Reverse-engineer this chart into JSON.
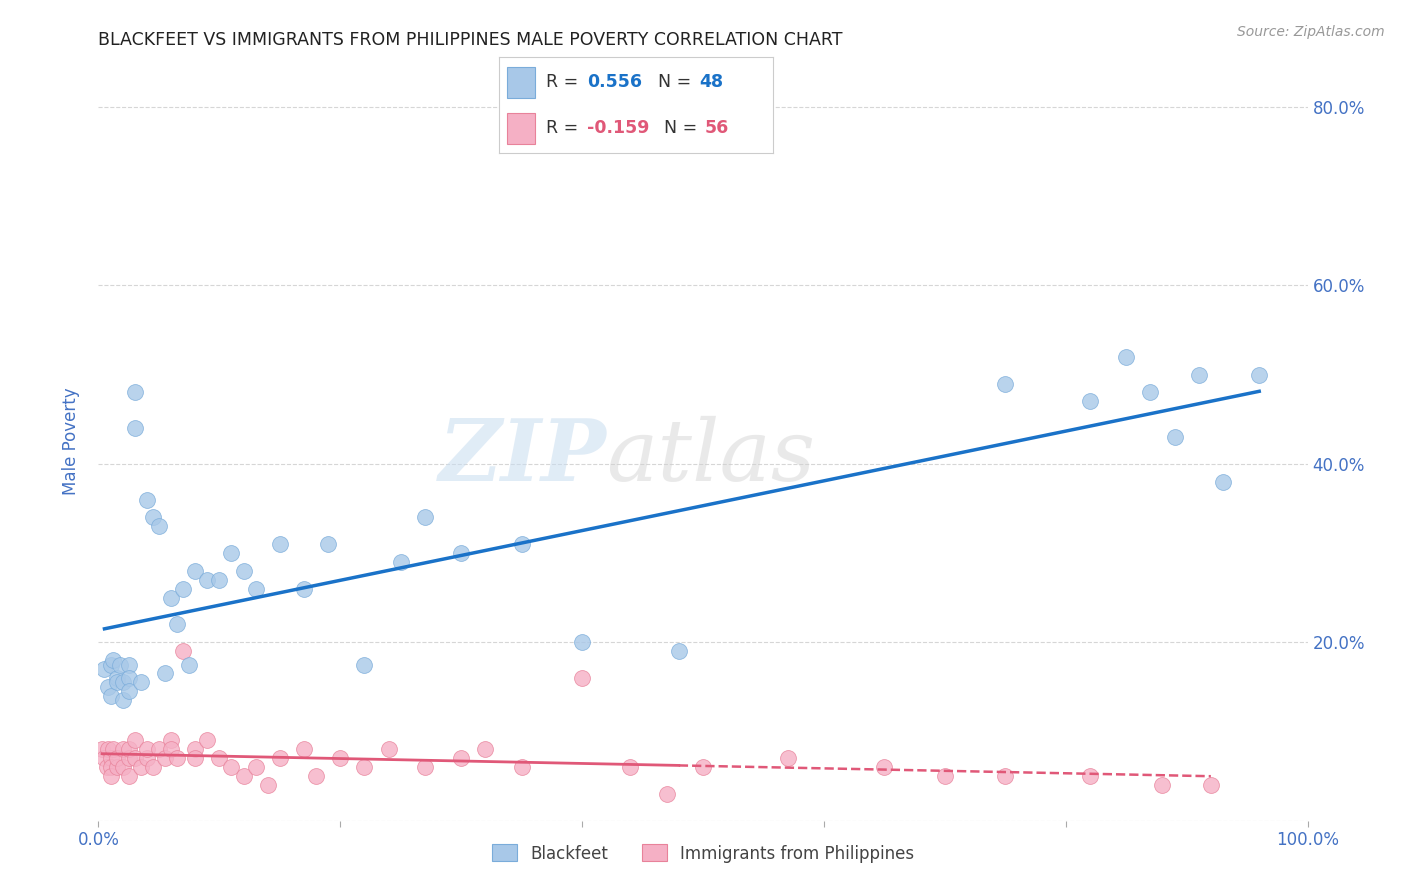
{
  "title": "BLACKFEET VS IMMIGRANTS FROM PHILIPPINES MALE POVERTY CORRELATION CHART",
  "source": "Source: ZipAtlas.com",
  "ylabel": "Male Poverty",
  "xlim": [
    0,
    1.0
  ],
  "ylim": [
    0,
    0.85
  ],
  "blue_R": 0.556,
  "blue_N": 48,
  "pink_R": -0.159,
  "pink_N": 56,
  "blue_scatter_color": "#a8c8e8",
  "pink_scatter_color": "#f5b0c5",
  "blue_edge_color": "#7aacda",
  "pink_edge_color": "#e8829a",
  "blue_line_color": "#1a72c8",
  "pink_line_color": "#e05878",
  "legend_blue_label": "Blackfeet",
  "legend_pink_label": "Immigrants from Philippines",
  "background_color": "#ffffff",
  "grid_color": "#cccccc",
  "title_color": "#222222",
  "axis_label_color": "#4472c4",
  "tick_color": "#4472c4",
  "blue_x": [
    0.005,
    0.008,
    0.01,
    0.01,
    0.012,
    0.015,
    0.015,
    0.018,
    0.02,
    0.02,
    0.025,
    0.025,
    0.025,
    0.03,
    0.03,
    0.035,
    0.04,
    0.045,
    0.05,
    0.055,
    0.06,
    0.065,
    0.07,
    0.075,
    0.08,
    0.09,
    0.1,
    0.11,
    0.12,
    0.13,
    0.15,
    0.17,
    0.19,
    0.22,
    0.25,
    0.27,
    0.3,
    0.35,
    0.4,
    0.48,
    0.75,
    0.82,
    0.85,
    0.87,
    0.89,
    0.91,
    0.93,
    0.96
  ],
  "blue_y": [
    0.17,
    0.15,
    0.175,
    0.14,
    0.18,
    0.16,
    0.155,
    0.175,
    0.155,
    0.135,
    0.175,
    0.16,
    0.145,
    0.48,
    0.44,
    0.155,
    0.36,
    0.34,
    0.33,
    0.165,
    0.25,
    0.22,
    0.26,
    0.175,
    0.28,
    0.27,
    0.27,
    0.3,
    0.28,
    0.26,
    0.31,
    0.26,
    0.31,
    0.175,
    0.29,
    0.34,
    0.3,
    0.31,
    0.2,
    0.19,
    0.49,
    0.47,
    0.52,
    0.48,
    0.43,
    0.5,
    0.38,
    0.5
  ],
  "pink_x": [
    0.003,
    0.005,
    0.007,
    0.008,
    0.01,
    0.01,
    0.01,
    0.012,
    0.015,
    0.015,
    0.02,
    0.02,
    0.025,
    0.025,
    0.025,
    0.03,
    0.03,
    0.035,
    0.04,
    0.04,
    0.045,
    0.05,
    0.055,
    0.06,
    0.06,
    0.065,
    0.07,
    0.08,
    0.08,
    0.09,
    0.1,
    0.11,
    0.12,
    0.13,
    0.14,
    0.15,
    0.17,
    0.18,
    0.2,
    0.22,
    0.24,
    0.27,
    0.3,
    0.32,
    0.35,
    0.4,
    0.44,
    0.47,
    0.5,
    0.57,
    0.65,
    0.7,
    0.75,
    0.82,
    0.88,
    0.92
  ],
  "pink_y": [
    0.08,
    0.07,
    0.06,
    0.08,
    0.07,
    0.06,
    0.05,
    0.08,
    0.06,
    0.07,
    0.08,
    0.06,
    0.07,
    0.05,
    0.08,
    0.07,
    0.09,
    0.06,
    0.07,
    0.08,
    0.06,
    0.08,
    0.07,
    0.09,
    0.08,
    0.07,
    0.19,
    0.08,
    0.07,
    0.09,
    0.07,
    0.06,
    0.05,
    0.06,
    0.04,
    0.07,
    0.08,
    0.05,
    0.07,
    0.06,
    0.08,
    0.06,
    0.07,
    0.08,
    0.06,
    0.16,
    0.06,
    0.03,
    0.06,
    0.07,
    0.06,
    0.05,
    0.05,
    0.05,
    0.04,
    0.04
  ]
}
